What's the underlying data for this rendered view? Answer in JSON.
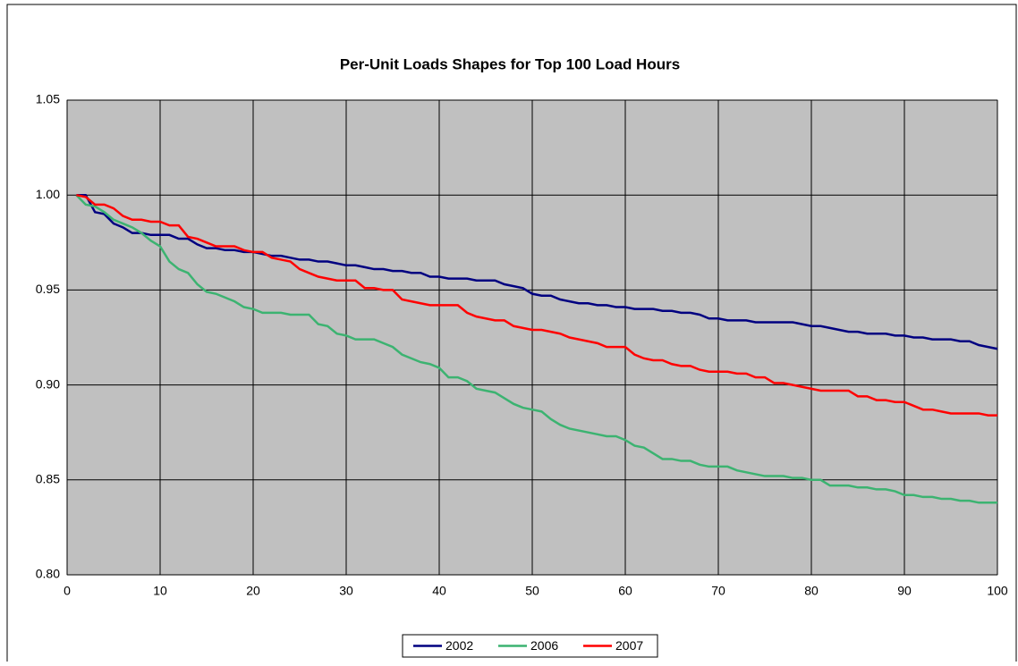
{
  "chart_data": {
    "type": "line",
    "title": "Per-Unit Loads Shapes for Top 100 Load Hours",
    "x": [
      1,
      2,
      3,
      4,
      5,
      6,
      7,
      8,
      9,
      10,
      11,
      12,
      13,
      14,
      15,
      16,
      17,
      18,
      19,
      20,
      21,
      22,
      23,
      24,
      25,
      26,
      27,
      28,
      29,
      30,
      31,
      32,
      33,
      34,
      35,
      36,
      37,
      38,
      39,
      40,
      41,
      42,
      43,
      44,
      45,
      46,
      47,
      48,
      49,
      50,
      51,
      52,
      53,
      54,
      55,
      56,
      57,
      58,
      59,
      60,
      61,
      62,
      63,
      64,
      65,
      66,
      67,
      68,
      69,
      70,
      71,
      72,
      73,
      74,
      75,
      76,
      77,
      78,
      79,
      80,
      81,
      82,
      83,
      84,
      85,
      86,
      87,
      88,
      89,
      90,
      91,
      92,
      93,
      94,
      95,
      96,
      97,
      98,
      99,
      100
    ],
    "series": [
      {
        "name": "2002",
        "color": "#000080",
        "values": [
          1.0,
          1.0,
          0.991,
          0.99,
          0.985,
          0.983,
          0.98,
          0.98,
          0.979,
          0.979,
          0.979,
          0.977,
          0.977,
          0.974,
          0.972,
          0.972,
          0.971,
          0.971,
          0.97,
          0.97,
          0.969,
          0.968,
          0.968,
          0.967,
          0.966,
          0.966,
          0.965,
          0.965,
          0.964,
          0.963,
          0.963,
          0.962,
          0.961,
          0.961,
          0.96,
          0.96,
          0.959,
          0.959,
          0.957,
          0.957,
          0.956,
          0.956,
          0.956,
          0.955,
          0.955,
          0.955,
          0.953,
          0.952,
          0.951,
          0.948,
          0.947,
          0.947,
          0.945,
          0.944,
          0.943,
          0.943,
          0.942,
          0.942,
          0.941,
          0.941,
          0.94,
          0.94,
          0.94,
          0.939,
          0.939,
          0.938,
          0.938,
          0.937,
          0.935,
          0.935,
          0.934,
          0.934,
          0.934,
          0.933,
          0.933,
          0.933,
          0.933,
          0.933,
          0.932,
          0.931,
          0.931,
          0.93,
          0.929,
          0.928,
          0.928,
          0.927,
          0.927,
          0.927,
          0.926,
          0.926,
          0.925,
          0.925,
          0.924,
          0.924,
          0.924,
          0.923,
          0.923,
          0.921,
          0.92,
          0.919
        ]
      },
      {
        "name": "2006",
        "color": "#3cb371",
        "values": [
          1.0,
          0.995,
          0.994,
          0.991,
          0.987,
          0.985,
          0.983,
          0.98,
          0.976,
          0.973,
          0.965,
          0.961,
          0.959,
          0.953,
          0.949,
          0.948,
          0.946,
          0.944,
          0.941,
          0.94,
          0.938,
          0.938,
          0.938,
          0.937,
          0.937,
          0.937,
          0.932,
          0.931,
          0.927,
          0.926,
          0.924,
          0.924,
          0.924,
          0.922,
          0.92,
          0.916,
          0.914,
          0.912,
          0.911,
          0.909,
          0.904,
          0.904,
          0.902,
          0.898,
          0.897,
          0.896,
          0.893,
          0.89,
          0.888,
          0.887,
          0.886,
          0.882,
          0.879,
          0.877,
          0.876,
          0.875,
          0.874,
          0.873,
          0.873,
          0.871,
          0.868,
          0.867,
          0.864,
          0.861,
          0.861,
          0.86,
          0.86,
          0.858,
          0.857,
          0.857,
          0.857,
          0.855,
          0.854,
          0.853,
          0.852,
          0.852,
          0.852,
          0.851,
          0.851,
          0.85,
          0.85,
          0.847,
          0.847,
          0.847,
          0.846,
          0.846,
          0.845,
          0.845,
          0.844,
          0.842,
          0.842,
          0.841,
          0.841,
          0.84,
          0.84,
          0.839,
          0.839,
          0.838,
          0.838,
          0.838
        ]
      },
      {
        "name": "2007",
        "color": "#ff0000",
        "values": [
          1.0,
          0.999,
          0.995,
          0.995,
          0.993,
          0.989,
          0.987,
          0.987,
          0.986,
          0.986,
          0.984,
          0.984,
          0.978,
          0.977,
          0.975,
          0.973,
          0.973,
          0.973,
          0.971,
          0.97,
          0.97,
          0.967,
          0.966,
          0.965,
          0.961,
          0.959,
          0.957,
          0.956,
          0.955,
          0.955,
          0.955,
          0.951,
          0.951,
          0.95,
          0.95,
          0.945,
          0.944,
          0.943,
          0.942,
          0.942,
          0.942,
          0.942,
          0.938,
          0.936,
          0.935,
          0.934,
          0.934,
          0.931,
          0.93,
          0.929,
          0.929,
          0.928,
          0.927,
          0.925,
          0.924,
          0.923,
          0.922,
          0.92,
          0.92,
          0.92,
          0.916,
          0.914,
          0.913,
          0.913,
          0.911,
          0.91,
          0.91,
          0.908,
          0.907,
          0.907,
          0.907,
          0.906,
          0.906,
          0.904,
          0.904,
          0.901,
          0.901,
          0.9,
          0.899,
          0.898,
          0.897,
          0.897,
          0.897,
          0.897,
          0.894,
          0.894,
          0.892,
          0.892,
          0.891,
          0.891,
          0.889,
          0.887,
          0.887,
          0.886,
          0.885,
          0.885,
          0.885,
          0.885,
          0.884,
          0.884
        ]
      }
    ],
    "xlim": [
      0,
      100
    ],
    "xticks": [
      0,
      10,
      20,
      30,
      40,
      50,
      60,
      70,
      80,
      90,
      100
    ],
    "ylim": [
      0.8,
      1.05
    ],
    "yticks": [
      {
        "value": 0.8,
        "label": "0.80"
      },
      0.85,
      {
        "value": 0.9,
        "label": "0.90"
      },
      0.95,
      {
        "value": 1,
        "label": "1.00"
      },
      1.05
    ],
    "grid": true,
    "legend": "bottom"
  }
}
